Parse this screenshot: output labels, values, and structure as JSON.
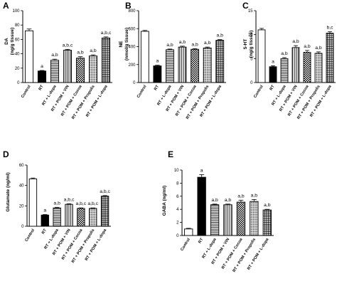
{
  "chart_data": [
    {
      "panel": "A",
      "type": "bar",
      "ylabel": "DA\n(ng/g tissue)",
      "categories": [
        "Control",
        "RT",
        "RT + L-dopa",
        "RT + POM + VIN",
        "RT + POM + Cocoa",
        "RT + POM + Propolis",
        "RT + POM + L-dopa"
      ],
      "values": [
        72,
        16,
        31,
        45,
        34,
        37,
        62
      ],
      "errors": [
        2.5,
        0.8,
        1.5,
        1.2,
        2.0,
        1.5,
        1.5
      ],
      "annotations": [
        "",
        "a",
        "a,b",
        "a,b,c",
        "a,b",
        "a,b",
        "a,b,c"
      ],
      "ylim": [
        0,
        100
      ],
      "yticks": [
        0,
        20,
        40,
        60,
        80,
        100
      ]
    },
    {
      "panel": "B",
      "type": "bar",
      "ylabel": "NE\n(nmol/g tissue)",
      "categories": [
        "Control",
        "RT",
        "RT + L-dopa",
        "RT + POM + VIN",
        "RT + POM + Cocoa",
        "RT + POM + Propolis",
        "RT + POM + L-dopa"
      ],
      "values": [
        570,
        185,
        365,
        395,
        370,
        385,
        470
      ],
      "errors": [
        10,
        8,
        8,
        10,
        8,
        10,
        8
      ],
      "annotations": [
        "",
        "a",
        "a,b",
        "a,b",
        "a,b",
        "a,b",
        "a,b"
      ],
      "ylim": [
        0,
        800
      ],
      "yticks": [
        0,
        200,
        400,
        600,
        800
      ]
    },
    {
      "panel": "C",
      "type": "bar",
      "ylabel": "5-HT\n(ng/g tissue)",
      "categories": [
        "Control",
        "RT",
        "RT + L-dopa",
        "RT + POM + VIN",
        "RT + POM + Cocoa",
        "RT + POM + Propolis",
        "RT + POM + L-dopa"
      ],
      "values": [
        11,
        3.3,
        5,
        7.3,
        6.3,
        6.1,
        10.3
      ],
      "errors": [
        0.3,
        0.2,
        0.2,
        0.4,
        0.4,
        0.3,
        0.3
      ],
      "annotations": [
        "",
        "a",
        "a,b",
        "a,b",
        "a,b",
        "a,b",
        "b,c"
      ],
      "ylim": [
        0,
        15
      ],
      "yticks": [
        0,
        5,
        10,
        15
      ]
    },
    {
      "panel": "D",
      "type": "bar",
      "ylabel": "Glutamate (ng/ml)",
      "categories": [
        "Control",
        "RT",
        "RT + L-dopa",
        "RT + POM + VIN",
        "RT + POM + Cocoa",
        "RT + POM + Propolis",
        "RT + POM + L-dopa"
      ],
      "values": [
        46.5,
        11,
        18,
        21.5,
        17.5,
        17.5,
        29.5
      ],
      "errors": [
        0.8,
        0.5,
        0.6,
        0.6,
        0.5,
        0.5,
        0.6
      ],
      "annotations": [
        "",
        "a",
        "a,b",
        "a,b,c",
        "a,b,c",
        "a,b,c",
        "a,b,c"
      ],
      "ylim": [
        0,
        60
      ],
      "yticks": [
        0,
        20,
        40,
        60
      ]
    },
    {
      "panel": "E",
      "type": "bar",
      "ylabel": "GABA (ng/ml)",
      "categories": [
        "Control",
        "RT",
        "RT + L-dopa",
        "RT + POM + VIN",
        "RT + POM + Cocoa",
        "RT + POM + Propolis",
        "RT + POM + L-dopa"
      ],
      "values": [
        1.0,
        8.9,
        4.7,
        4.7,
        5.1,
        5.2,
        3.9
      ],
      "errors": [
        0.1,
        0.4,
        0.1,
        0.1,
        0.3,
        0.3,
        0.1
      ],
      "annotations": [
        "",
        "a",
        "a,b",
        "a,b",
        "a,b",
        "a,b",
        "a,b"
      ],
      "ylim": [
        0,
        10
      ],
      "yticks": [
        0,
        2,
        4,
        6,
        8,
        10
      ]
    }
  ]
}
